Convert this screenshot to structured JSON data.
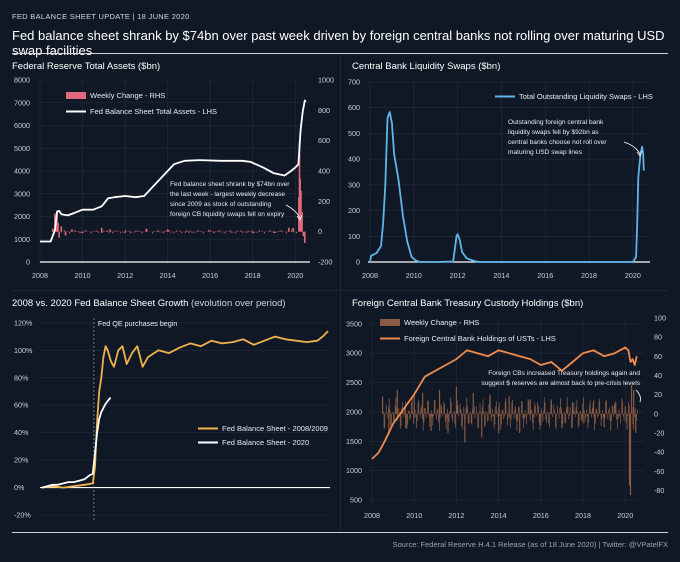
{
  "header": {
    "tag": "FED BALANCE SHEET UPDATE  |  18 JUNE 2020",
    "headline": "Fed balance sheet shrank by $74bn over past week driven by foreign central banks not rolling over maturing USD swap facilities"
  },
  "footer": "Source: Federal Reserve H.4.1 Release (as of 18 June 2020) | Twitter: @VPatelFX",
  "colors": {
    "background": "#101826",
    "grid": "#232d3e",
    "pink": "#e06a7a",
    "white": "#ffffff",
    "blue": "#5fb4e8",
    "orange": "#f08a4b",
    "brown": "#8a5a42",
    "gold": "#f0b24a"
  },
  "chart_data": [
    {
      "id": "tl",
      "type": "line",
      "title": "Federal Reserve Total Assets ($bn)",
      "x_ticks": [
        "2008",
        "2010",
        "2012",
        "2014",
        "2016",
        "2018",
        "2020"
      ],
      "y_ticks": [
        "0",
        "1000",
        "2000",
        "3000",
        "4000",
        "5000",
        "6000",
        "7000",
        "8000"
      ],
      "y2_ticks": [
        "-200",
        "0",
        "200",
        "400",
        "600",
        "800",
        "1000"
      ],
      "ylim": [
        0,
        8000
      ],
      "y2lim": [
        -200,
        1000
      ],
      "xlim": [
        2008,
        2020.6
      ],
      "grid": true,
      "legend": [
        {
          "label": "Weekly Change - RHS",
          "color": "#e06a7a",
          "kind": "bar"
        },
        {
          "label": "Fed Balance Sheet Total Assets - LHS",
          "color": "#ffffff",
          "kind": "line"
        }
      ],
      "annotation": [
        "Fed balance sheet shrank by $74bn over",
        "the last week - largest weekly decrease",
        "since 2009 as stock of outstanding",
        "foreign CB liquidity swaps fell on expiry"
      ],
      "series": [
        {
          "name": "Fed Balance Sheet Total Assets - LHS",
          "axis": "left",
          "color": "#ffffff",
          "x": [
            2008.0,
            2008.5,
            2008.7,
            2008.8,
            2008.9,
            2009.0,
            2009.3,
            2009.6,
            2010.0,
            2010.5,
            2010.9,
            2011.2,
            2011.5,
            2012.0,
            2012.5,
            2012.9,
            2013.3,
            2013.8,
            2014.3,
            2014.8,
            2015.5,
            2016.5,
            2017.5,
            2017.9,
            2018.5,
            2019.0,
            2019.5,
            2019.8,
            2020.0,
            2020.15,
            2020.25,
            2020.35,
            2020.45,
            2020.5
          ],
          "y": [
            900,
            900,
            1400,
            2200,
            2250,
            2100,
            2050,
            2150,
            2300,
            2300,
            2450,
            2800,
            2850,
            2900,
            2850,
            2900,
            3300,
            3800,
            4300,
            4450,
            4480,
            4450,
            4450,
            4400,
            4150,
            3900,
            3800,
            4000,
            4150,
            4300,
            5800,
            6600,
            7100,
            7050
          ]
        },
        {
          "name": "Weekly Change - RHS",
          "axis": "right",
          "color": "#e06a7a",
          "x": [
            2008.6,
            2008.7,
            2008.75,
            2008.8,
            2008.85,
            2008.9,
            2009.0,
            2009.2,
            2009.5,
            2010.0,
            2010.9,
            2011.3,
            2012.0,
            2013.0,
            2014.0,
            2015.0,
            2016.0,
            2017.0,
            2018.0,
            2019.0,
            2019.7,
            2019.9,
            2020.17,
            2020.2,
            2020.23,
            2020.27,
            2020.32,
            2020.38,
            2020.45
          ],
          "y": [
            20,
            120,
            90,
            140,
            60,
            -40,
            35,
            -25,
            15,
            -10,
            25,
            15,
            -8,
            20,
            15,
            -6,
            7,
            -6,
            -9,
            -9,
            25,
            25,
            230,
            590,
            350,
            270,
            130,
            -30,
            -74
          ]
        }
      ]
    },
    {
      "id": "tr",
      "type": "line",
      "title": "Central Bank Liquidity Swaps ($bn)",
      "x_ticks": [
        "2008",
        "2010",
        "2012",
        "2014",
        "2016",
        "2018",
        "2020"
      ],
      "y_ticks": [
        "0",
        "100",
        "200",
        "300",
        "400",
        "500",
        "600",
        "700"
      ],
      "ylim": [
        0,
        700
      ],
      "xlim": [
        2008,
        2020.6
      ],
      "grid": true,
      "legend": [
        {
          "label": "Total Outstanding Liquidity Swaps - LHS",
          "color": "#5fb4e8",
          "kind": "line"
        }
      ],
      "annotation": [
        "Outstanding foreign central bank",
        "liquidity swaps fell by $92bn as",
        "central banks choose not roll over",
        "maturing USD swap lines"
      ],
      "series": [
        {
          "name": "Total Outstanding Liquidity Swaps - LHS",
          "color": "#5fb4e8",
          "x": [
            2008.0,
            2008.05,
            2008.3,
            2008.5,
            2008.6,
            2008.7,
            2008.8,
            2008.9,
            2009.0,
            2009.1,
            2009.3,
            2009.5,
            2009.7,
            2009.9,
            2010.1,
            2010.3,
            2010.5,
            2011.0,
            2011.8,
            2011.95,
            2012.0,
            2012.1,
            2012.2,
            2012.4,
            2012.6,
            2012.8,
            2013.0,
            2014.0,
            2015.0,
            2016.0,
            2017.0,
            2018.0,
            2019.0,
            2020.0,
            2020.15,
            2020.2,
            2020.25,
            2020.35,
            2020.42,
            2020.47,
            2020.5
          ],
          "y": [
            0,
            24,
            35,
            62,
            150,
            300,
            560,
            583,
            540,
            420,
            320,
            180,
            80,
            20,
            5,
            0,
            0,
            0,
            2,
            100,
            108,
            85,
            40,
            15,
            8,
            3,
            0,
            0,
            0,
            0,
            0,
            0,
            0,
            0,
            20,
            150,
            330,
            420,
            448,
            420,
            356
          ]
        }
      ]
    },
    {
      "id": "bl",
      "type": "line",
      "title": "2008 vs. 2020 Fed Balance Sheet Growth",
      "subtitle": "(evolution over period)",
      "x_ticks": [],
      "y_ticks": [
        "-20%",
        "0%",
        "20%",
        "40%",
        "60%",
        "80%",
        "100%",
        "120%"
      ],
      "ylim": [
        -20,
        125
      ],
      "grid": true,
      "legend": [
        {
          "label": "Fed Balance Sheet - 2008/2009",
          "color": "#f0b24a",
          "kind": "line"
        },
        {
          "label": "Fed Balance Sheet - 2020",
          "color": "#ffffff",
          "kind": "line"
        }
      ],
      "annotation": "Fed QE purchases begin",
      "qe_start_week": 49,
      "series": [
        {
          "name": "Fed Balance Sheet - 2008/2009",
          "color": "#f0b24a",
          "x": [
            0,
            10,
            20,
            30,
            40,
            48,
            50,
            52,
            54,
            56,
            58,
            60,
            62,
            65,
            68,
            72,
            76,
            80,
            85,
            90,
            95,
            100,
            110,
            120,
            130,
            140,
            150,
            160,
            170,
            180,
            190,
            200,
            210,
            220,
            230,
            240,
            250,
            260,
            265,
            270
          ],
          "y": [
            0,
            1,
            0,
            1,
            2,
            3,
            15,
            48,
            70,
            80,
            95,
            103,
            100,
            92,
            88,
            100,
            103,
            90,
            98,
            103,
            88,
            95,
            100,
            98,
            102,
            105,
            103,
            107,
            105,
            106,
            108,
            104,
            107,
            110,
            108,
            107,
            106,
            107,
            110,
            114
          ]
        },
        {
          "name": "Fed Balance Sheet - 2020",
          "color": "#ffffff",
          "x": [
            0,
            5,
            10,
            15,
            20,
            25,
            30,
            35,
            40,
            45,
            48,
            50,
            52,
            54,
            56,
            58,
            60,
            62,
            64,
            65
          ],
          "y": [
            0,
            1,
            2,
            2,
            3,
            4,
            4,
            5,
            6,
            9,
            10,
            25,
            40,
            50,
            55,
            58,
            61,
            63,
            65,
            65
          ]
        }
      ]
    },
    {
      "id": "br",
      "type": "line",
      "title": "Foreign Central Bank Treasury Custody Holdings ($bn)",
      "x_ticks": [
        "2008",
        "2010",
        "2012",
        "2014",
        "2016",
        "2018",
        "2020"
      ],
      "y_ticks": [
        "500",
        "1000",
        "1500",
        "2000",
        "2500",
        "3000",
        "3500"
      ],
      "y2_ticks": [
        "-80",
        "-60",
        "-40",
        "-20",
        "0",
        "20",
        "40",
        "60",
        "80",
        "100"
      ],
      "ylim": [
        500,
        3600
      ],
      "y2lim": [
        -90,
        100
      ],
      "xlim": [
        2008,
        2020.7
      ],
      "grid": true,
      "legend": [
        {
          "label": "Weekly Change - RHS",
          "color": "#8a5a42",
          "kind": "bar"
        },
        {
          "label": "Foreign Central Bank Holdings of USTs - LHS",
          "color": "#f08a4b",
          "kind": "line"
        }
      ],
      "annotation": [
        "Foreign CBs increased Treasury holdings again and",
        "suggest $ reserves are almost back to pre-crisis levels"
      ],
      "series": [
        {
          "name": "Foreign Central Bank Holdings of USTs - LHS",
          "axis": "left",
          "color": "#f08a4b",
          "x": [
            2008.0,
            2008.3,
            2008.6,
            2009.0,
            2009.5,
            2010.0,
            2010.5,
            2011.0,
            2011.5,
            2012.0,
            2012.5,
            2013.0,
            2013.5,
            2014.0,
            2014.5,
            2015.0,
            2015.5,
            2016.0,
            2016.5,
            2017.0,
            2017.5,
            2018.0,
            2018.5,
            2019.0,
            2019.5,
            2020.0,
            2020.15,
            2020.25,
            2020.35,
            2020.45,
            2020.55
          ],
          "y": [
            1200,
            1300,
            1500,
            1800,
            2050,
            2300,
            2600,
            2700,
            2800,
            2900,
            3050,
            3000,
            2950,
            3050,
            3000,
            2950,
            2900,
            2800,
            2850,
            2700,
            2850,
            3000,
            3050,
            2950,
            3000,
            3100,
            3050,
            2850,
            2900,
            2800,
            2950
          ]
        },
        {
          "name": "Weekly Change - RHS",
          "axis": "right",
          "color": "#8a5a42",
          "x": [
            2008.5,
            2008.8,
            2009.2,
            2009.6,
            2010.0,
            2010.4,
            2010.8,
            2011.2,
            2011.6,
            2012.0,
            2012.4,
            2012.8,
            2013.2,
            2013.6,
            2014.0,
            2014.5,
            2015.0,
            2015.5,
            2016.0,
            2016.5,
            2017.0,
            2017.5,
            2018.0,
            2018.5,
            2019.0,
            2019.5,
            2020.0,
            2020.2,
            2020.25,
            2020.3,
            2020.4,
            2020.5
          ],
          "y": [
            18,
            -22,
            25,
            -15,
            20,
            22,
            -18,
            25,
            -20,
            28,
            -30,
            22,
            -25,
            20,
            -20,
            18,
            -20,
            15,
            -12,
            14,
            -15,
            12,
            -10,
            14,
            -14,
            10,
            8,
            -75,
            -85,
            30,
            25,
            -20
          ]
        }
      ]
    }
  ]
}
